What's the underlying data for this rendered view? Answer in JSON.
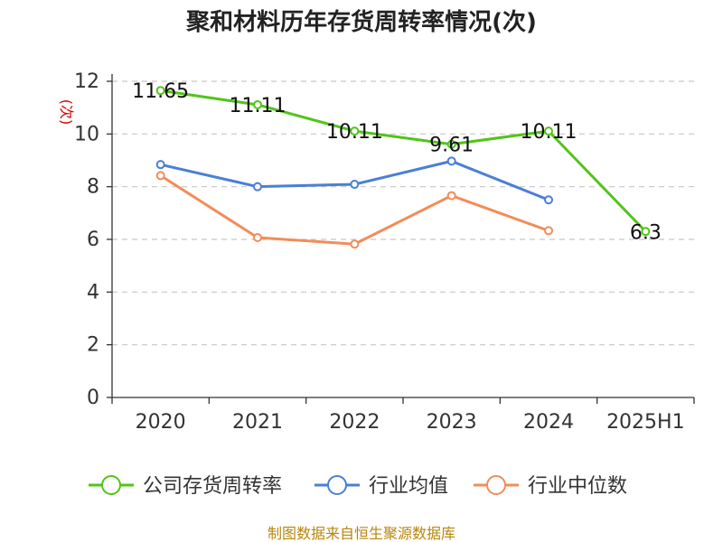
{
  "chart_data": {
    "type": "line",
    "title": "聚和材料历年存货周转率情况(次)",
    "ylabel": "(次)",
    "categories": [
      "2020",
      "2021",
      "2022",
      "2023",
      "2024",
      "2025H1"
    ],
    "ylim": [
      0,
      12
    ],
    "yticks": [
      0,
      2,
      4,
      6,
      8,
      10,
      12
    ],
    "grid": true,
    "legend_position": "bottom",
    "series": [
      {
        "name": "公司存货周转率",
        "color": "#52c41a",
        "values": [
          11.65,
          11.11,
          10.11,
          9.61,
          10.11,
          6.3
        ],
        "labels": [
          "11.65",
          "11.11",
          "10.11",
          "9.61",
          "10.11",
          "6.3"
        ]
      },
      {
        "name": "行业均值",
        "color": "#4a7fd6",
        "values": [
          8.84,
          8.0,
          8.09,
          8.97,
          7.5,
          null
        ]
      },
      {
        "name": "行业中位数",
        "color": "#f28c5a",
        "values": [
          8.42,
          6.07,
          5.82,
          7.66,
          6.33,
          null
        ]
      }
    ]
  },
  "footer": {
    "source": "制图数据来自恒生聚源数据库"
  }
}
